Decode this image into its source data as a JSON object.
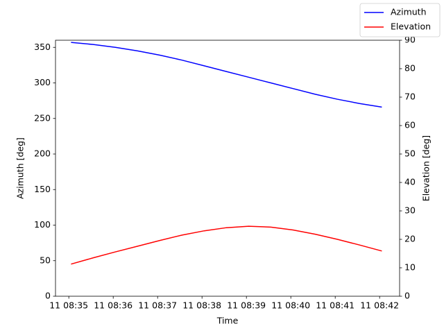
{
  "chart_data": {
    "type": "line",
    "xlabel": "Time",
    "ylabel": "Azimuth [deg]",
    "y2label": "Elevation [deg]",
    "x": [
      0.05,
      0.55,
      1.05,
      1.55,
      2.05,
      2.55,
      3.05,
      3.55,
      4.05,
      4.55,
      5.05,
      5.55,
      6.05,
      6.55,
      7.05
    ],
    "xlim": [
      -0.3,
      7.45
    ],
    "xticks": [
      {
        "value": 0,
        "label": "11 08:35"
      },
      {
        "value": 1,
        "label": "11 08:36"
      },
      {
        "value": 2,
        "label": "11 08:37"
      },
      {
        "value": 3,
        "label": "11 08:38"
      },
      {
        "value": 4,
        "label": "11 08:39"
      },
      {
        "value": 5,
        "label": "11 08:40"
      },
      {
        "value": 6,
        "label": "11 08:41"
      },
      {
        "value": 7,
        "label": "11 08:42"
      }
    ],
    "ylim": [
      0,
      360
    ],
    "yticks": [
      0,
      50,
      100,
      150,
      200,
      250,
      300,
      350
    ],
    "y2lim": [
      0,
      90
    ],
    "y2ticks": [
      0,
      10,
      20,
      30,
      40,
      50,
      60,
      70,
      80,
      90
    ],
    "legend": "upper right",
    "series": [
      {
        "name": "Azimuth",
        "color": "blue",
        "values": [
          357,
          354,
          350,
          345,
          339,
          332,
          324,
          316,
          308,
          300,
          292,
          284,
          277,
          271,
          266
        ]
      },
      {
        "name": "Elevation",
        "color": "red",
        "axis": "y2",
        "values": [
          11.3,
          13.5,
          15.6,
          17.6,
          19.6,
          21.5,
          23.0,
          24.1,
          24.6,
          24.3,
          23.3,
          21.8,
          20.0,
          18.0,
          15.9
        ]
      }
    ]
  }
}
